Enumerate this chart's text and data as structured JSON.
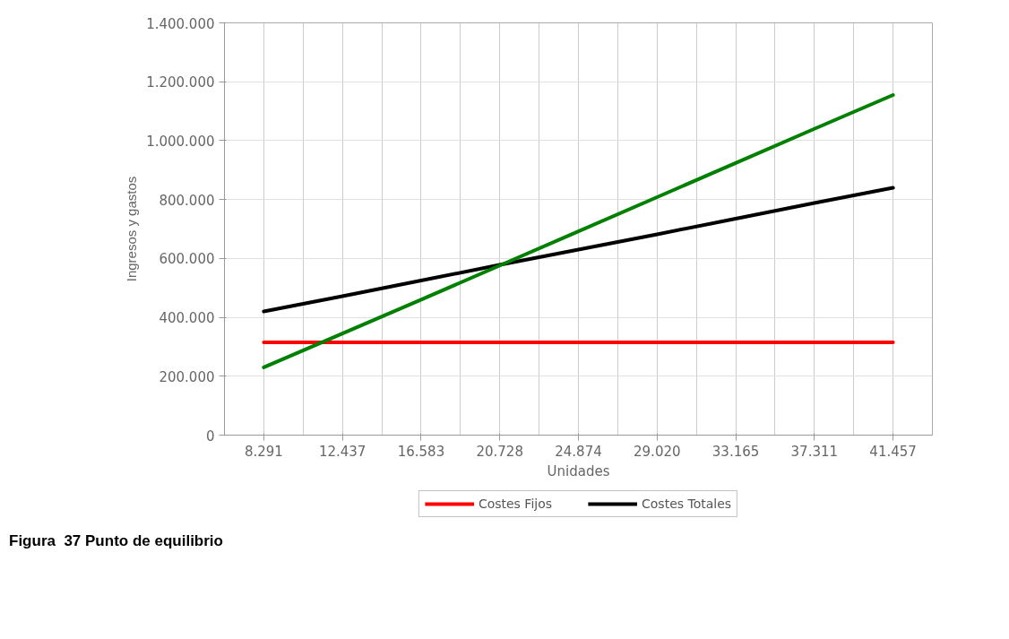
{
  "chart_data": {
    "type": "line",
    "xlabel": "Unidades",
    "ylabel": "Ingresos y gastos",
    "categories": [
      "8.291",
      "12.437",
      "16.583",
      "20.728",
      "24.874",
      "29.020",
      "33.165",
      "37.311",
      "41.457"
    ],
    "series": [
      {
        "name": "Costes Fijos",
        "color": "#ff0000",
        "values": [
          315000,
          315000,
          315000,
          315000,
          315000,
          315000,
          315000,
          315000,
          315000
        ]
      },
      {
        "name": "Costes Totales",
        "color": "#000000",
        "values": [
          420000,
          472000,
          525000,
          578000,
          630000,
          682000,
          735000,
          788000,
          840000
        ]
      },
      {
        "color": "#008000",
        "values": [
          230000,
          345000,
          460000,
          576000,
          692000,
          808000,
          924000,
          1040000,
          1155000
        ]
      }
    ],
    "ylim": [
      0,
      1400000
    ],
    "yticks": [
      {
        "value": 0,
        "label": "0"
      },
      {
        "value": 200000,
        "label": "200.000"
      },
      {
        "value": 400000,
        "label": "400.000"
      },
      {
        "value": 600000,
        "label": "600.000"
      },
      {
        "value": 800000,
        "label": "800.000"
      },
      {
        "value": 1000000,
        "label": "1.000.000"
      },
      {
        "value": 1200000,
        "label": "1.200.000"
      },
      {
        "value": 1400000,
        "label": "1.400.000"
      }
    ],
    "grid": true,
    "legend": "bottom",
    "marker": "none",
    "line_style": "solid",
    "annotations": [
      "Figura  37 Punto de equilibrio"
    ]
  }
}
